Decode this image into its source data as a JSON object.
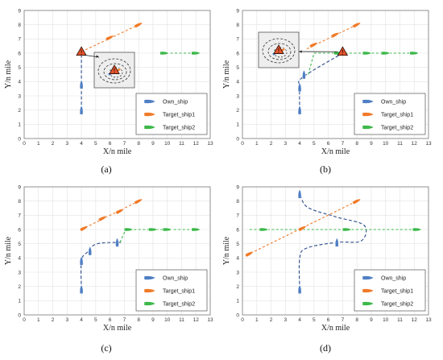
{
  "chart_data": [
    {
      "type": "scatter",
      "panel": "a",
      "caption": "(a)",
      "xlabel": "X/n mile",
      "ylabel": "Y/n mile",
      "xlim": [
        0,
        13
      ],
      "ylim": [
        0,
        9
      ],
      "xticks": [
        "0",
        "1",
        "2",
        "3",
        "4",
        "5",
        "6",
        "7",
        "8",
        "9",
        "10",
        "11",
        "12",
        "13"
      ],
      "yticks": [
        "0",
        "1",
        "2",
        "3",
        "4",
        "5",
        "6",
        "7",
        "8",
        "9"
      ],
      "grid": true,
      "legend_position": "bottom-right",
      "legend": [
        "Own_ship",
        "Target_ship1",
        "Target_ship2"
      ],
      "series": [
        {
          "name": "Own_ship",
          "color": "#4f7fc4",
          "heading": "north",
          "ships": [
            [
              4,
              2.0
            ],
            [
              4,
              3.8
            ]
          ],
          "path": [
            [
              4,
              2.0
            ],
            [
              4,
              6.0
            ]
          ]
        },
        {
          "name": "Target_ship1",
          "color": "#f07a28",
          "heading": "northeast",
          "ships": [
            [
              6,
              7.1
            ],
            [
              8,
              8.0
            ]
          ],
          "path": [
            [
              4,
              6.1
            ],
            [
              8,
              8.0
            ]
          ]
        },
        {
          "name": "Target_ship2",
          "color": "#3db84a",
          "heading": "east",
          "ships": [
            [
              9.8,
              6.0
            ],
            [
              12,
              6.0
            ]
          ],
          "path": [
            [
              9.6,
              6.0
            ],
            [
              12.2,
              6.0
            ]
          ]
        }
      ],
      "markers": [
        {
          "type": "warning-triangle",
          "at": [
            4,
            6.1
          ],
          "color": "#e8532b"
        }
      ],
      "inset": {
        "content": "zoomed-collision-zones",
        "ship_colors": [
          "#4f7fc4",
          "#f07a28"
        ]
      }
    },
    {
      "type": "scatter",
      "panel": "b",
      "caption": "(b)",
      "xlabel": "X/n mile",
      "ylabel": "Y/n mile",
      "xlim": [
        0,
        13
      ],
      "ylim": [
        0,
        9
      ],
      "xticks": [
        "0",
        "1",
        "2",
        "3",
        "4",
        "5",
        "6",
        "7",
        "8",
        "9",
        "10",
        "11",
        "12",
        "13"
      ],
      "yticks": [
        "0",
        "1",
        "2",
        "3",
        "4",
        "5",
        "6",
        "7",
        "8",
        "9"
      ],
      "grid": true,
      "legend_position": "bottom-right",
      "legend": [
        "Own_ship",
        "Target_ship1",
        "Target_ship2"
      ],
      "series": [
        {
          "name": "Own_ship",
          "color": "#4f7fc4",
          "heading": "north",
          "ships": [
            [
              4,
              2.0
            ],
            [
              4,
              3.6
            ],
            [
              4.3,
              4.5
            ]
          ],
          "path": [
            [
              4,
              2.0
            ],
            [
              4,
              3.6
            ],
            [
              4.2,
              4.3
            ],
            [
              7,
              6.0
            ]
          ]
        },
        {
          "name": "Target_ship1",
          "color": "#f07a28",
          "heading": "northeast",
          "ships": [
            [
              5,
              6.6
            ],
            [
              6.5,
              7.3
            ],
            [
              8,
              8.0
            ]
          ],
          "path": [
            [
              4.5,
              6.3
            ],
            [
              8,
              8.0
            ]
          ]
        },
        {
          "name": "Target_ship2",
          "color": "#3db84a",
          "heading": "east",
          "ships": [
            [
              6.7,
              6.0
            ],
            [
              8.7,
              6.0
            ],
            [
              10,
              6.0
            ],
            [
              12,
              6.0
            ]
          ],
          "path": [
            [
              4.6,
              4.5
            ],
            [
              5,
              6.0
            ],
            [
              12.2,
              6.0
            ]
          ]
        }
      ],
      "markers": [
        {
          "type": "warning-triangle",
          "at": [
            7,
            6.1
          ],
          "color": "#e8532b"
        }
      ],
      "inset": {
        "content": "zoomed-collision-zones",
        "ship_colors": [
          "#4f7fc4",
          "#f07a28"
        ]
      }
    },
    {
      "type": "scatter",
      "panel": "c",
      "caption": "(c)",
      "xlabel": "X/n mile",
      "ylabel": "Y/n mile",
      "xlim": [
        0,
        13
      ],
      "ylim": [
        0,
        9
      ],
      "xticks": [
        "0",
        "1",
        "2",
        "3",
        "4",
        "5",
        "6",
        "7",
        "8",
        "9",
        "10",
        "11",
        "12",
        "13"
      ],
      "yticks": [
        "0",
        "1",
        "2",
        "3",
        "4",
        "5",
        "6",
        "7",
        "8",
        "9"
      ],
      "grid": true,
      "legend_position": "bottom-right",
      "legend": [
        "Own_ship",
        "Target_ship1",
        "Target_ship2"
      ],
      "series": [
        {
          "name": "Own_ship",
          "color": "#4f7fc4",
          "heading": "north",
          "ships": [
            [
              4,
              1.8
            ],
            [
              4,
              3.8
            ],
            [
              4.6,
              4.5
            ],
            [
              6.5,
              5.1
            ]
          ],
          "path": [
            [
              4,
              1.8
            ],
            [
              4,
              3.8
            ],
            [
              4.4,
              4.4
            ],
            [
              5.1,
              5.0
            ],
            [
              6.9,
              5.1
            ]
          ]
        },
        {
          "name": "Target_ship1",
          "color": "#f07a28",
          "heading": "northeast",
          "ships": [
            [
              4.2,
              6.1
            ],
            [
              5.5,
              6.8
            ],
            [
              6.7,
              7.3
            ],
            [
              8,
              8.0
            ]
          ],
          "path": [
            [
              4,
              6.0
            ],
            [
              8,
              8.0
            ]
          ]
        },
        {
          "name": "Target_ship2",
          "color": "#3db84a",
          "heading": "east",
          "ships": [
            [
              7.3,
              6.0
            ],
            [
              9,
              6.0
            ],
            [
              10,
              6.0
            ],
            [
              12,
              6.0
            ]
          ],
          "path": [
            [
              6.7,
              5.1
            ],
            [
              7.1,
              6.0
            ],
            [
              12.2,
              6.0
            ]
          ]
        }
      ],
      "markers": []
    },
    {
      "type": "scatter",
      "panel": "d",
      "caption": "(d)",
      "xlabel": "X/n mile",
      "ylabel": "Y/n mile",
      "xlim": [
        0,
        13
      ],
      "ylim": [
        0,
        9
      ],
      "xticks": [
        "0",
        "1",
        "2",
        "3",
        "4",
        "5",
        "6",
        "7",
        "8",
        "9",
        "10",
        "11",
        "12",
        "13"
      ],
      "yticks": [
        "0",
        "1",
        "2",
        "3",
        "4",
        "5",
        "6",
        "7",
        "8",
        "9"
      ],
      "grid": true,
      "legend_position": "bottom-right",
      "legend": [
        "Own_ship",
        "Target_ship1",
        "Target_ship2"
      ],
      "series": [
        {
          "name": "Own_ship",
          "color": "#4f7fc4",
          "heading": "north",
          "ships": [
            [
              4,
              1.8
            ],
            [
              4,
              8.5
            ],
            [
              6.6,
              5.1
            ]
          ],
          "path": [
            [
              4,
              1.8
            ],
            [
              4,
              4.0
            ],
            [
              4.5,
              4.7
            ],
            [
              6.6,
              5.1
            ],
            [
              8.3,
              5.2
            ],
            [
              8.5,
              6.3
            ],
            [
              6.5,
              6.9
            ],
            [
              4.5,
              7.6
            ],
            [
              4,
              8.7
            ]
          ]
        },
        {
          "name": "Target_ship1",
          "color": "#f07a28",
          "heading": "northeast",
          "ships": [
            [
              0.5,
              4.3
            ],
            [
              4.2,
              6.1
            ],
            [
              8,
              8.0
            ]
          ],
          "path": [
            [
              0.3,
              4.2
            ],
            [
              8,
              8.0
            ]
          ]
        },
        {
          "name": "Target_ship2",
          "color": "#3db84a",
          "heading": "east",
          "ships": [
            [
              1.5,
              6.0
            ],
            [
              7.3,
              6.0
            ],
            [
              12.2,
              6.0
            ]
          ],
          "path": [
            [
              0.5,
              6.0
            ],
            [
              12.2,
              6.0
            ]
          ]
        }
      ],
      "markers": []
    }
  ]
}
